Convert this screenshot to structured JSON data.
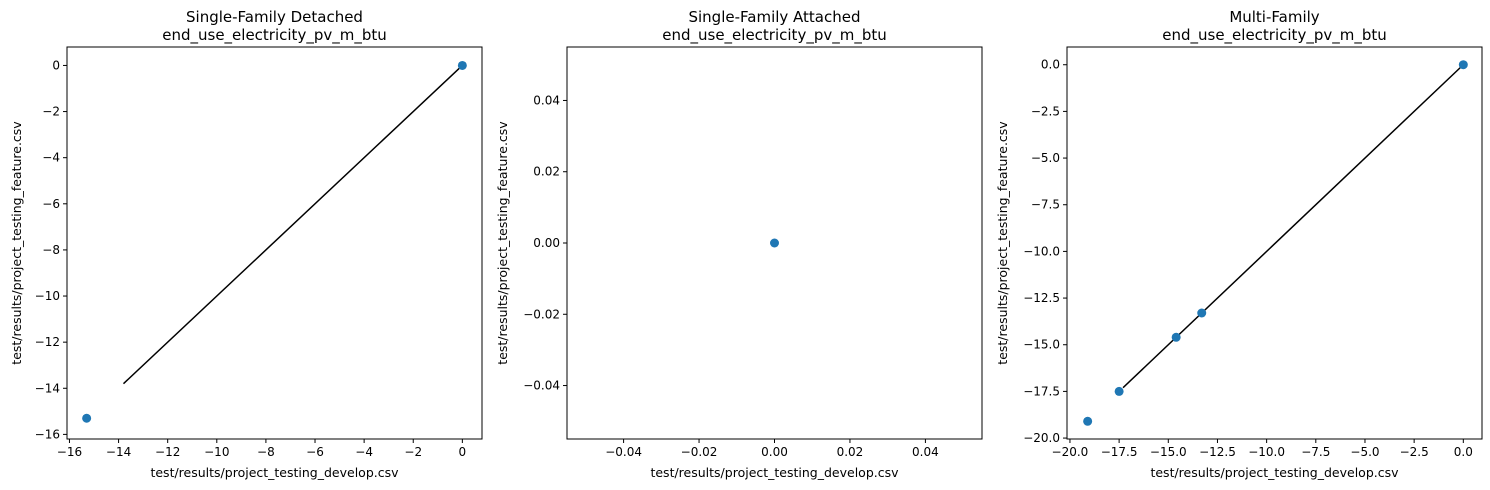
{
  "chart_data": [
    {
      "type": "scatter",
      "title": "Single-Family Detached",
      "subtitle": "end_use_electricity_pv_m_btu",
      "xlabel": "test/results/project_testing_develop.csv",
      "ylabel": "test/results/project_testing_feature.csv",
      "xlim": [
        -16.1,
        0.8
      ],
      "ylim": [
        -16.2,
        0.8
      ],
      "xticks": [
        -16,
        -14,
        -12,
        -10,
        -8,
        -6,
        -4,
        -2,
        0
      ],
      "xtick_labels": [
        "−16",
        "−14",
        "−12",
        "−10",
        "−8",
        "−6",
        "−4",
        "−2",
        "0"
      ],
      "yticks": [
        0,
        -2,
        -4,
        -6,
        -8,
        -10,
        -12,
        -14,
        -16
      ],
      "ytick_labels": [
        "0",
        "−2",
        "−4",
        "−6",
        "−8",
        "−10",
        "−12",
        "−14",
        "−16"
      ],
      "points": [
        {
          "x": 0,
          "y": 0
        },
        {
          "x": -15.3,
          "y": -15.3
        }
      ],
      "line": [
        {
          "x": -13.8,
          "y": -13.8
        },
        {
          "x": 0,
          "y": 0
        }
      ],
      "point_color": "#1f77b4",
      "line_color": "#000000"
    },
    {
      "type": "scatter",
      "title": "Single-Family Attached",
      "subtitle": "end_use_electricity_pv_m_btu",
      "xlabel": "test/results/project_testing_develop.csv",
      "ylabel": "test/results/project_testing_feature.csv",
      "xlim": [
        -0.055,
        0.055
      ],
      "ylim": [
        -0.055,
        0.055
      ],
      "xticks": [
        -0.04,
        -0.02,
        0,
        0.02,
        0.04
      ],
      "xtick_labels": [
        "−0.04",
        "−0.02",
        "0.00",
        "0.02",
        "0.04"
      ],
      "yticks": [
        0.04,
        0.02,
        0,
        -0.02,
        -0.04
      ],
      "ytick_labels": [
        "0.04",
        "0.02",
        "0.00",
        "−0.02",
        "−0.04"
      ],
      "points": [
        {
          "x": 0,
          "y": 0
        }
      ],
      "line": [],
      "point_color": "#1f77b4",
      "line_color": "#000000"
    },
    {
      "type": "scatter",
      "title": "Multi-Family",
      "subtitle": "end_use_electricity_pv_m_btu",
      "xlabel": "test/results/project_testing_develop.csv",
      "ylabel": "test/results/project_testing_feature.csv",
      "xlim": [
        -20.15,
        0.95
      ],
      "ylim": [
        -20.05,
        0.95
      ],
      "xticks": [
        -20,
        -17.5,
        -15,
        -12.5,
        -10,
        -7.5,
        -5,
        -2.5,
        0
      ],
      "xtick_labels": [
        "−20.0",
        "−17.5",
        "−15.0",
        "−12.5",
        "−10.0",
        "−7.5",
        "−5.0",
        "−2.5",
        "0.0"
      ],
      "yticks": [
        0,
        -2.5,
        -5,
        -7.5,
        -10,
        -12.5,
        -15,
        -17.5,
        -20
      ],
      "ytick_labels": [
        "0.0",
        "−2.5",
        "−5.0",
        "−7.5",
        "−10.0",
        "−12.5",
        "−15.0",
        "−17.5",
        "−20.0"
      ],
      "points": [
        {
          "x": 0,
          "y": 0
        },
        {
          "x": -13.3,
          "y": -13.3
        },
        {
          "x": -14.6,
          "y": -14.6
        },
        {
          "x": -17.5,
          "y": -17.5
        },
        {
          "x": -19.1,
          "y": -19.1
        }
      ],
      "line": [
        {
          "x": -17.3,
          "y": -17.3
        },
        {
          "x": 0,
          "y": 0
        }
      ],
      "point_color": "#1f77b4",
      "line_color": "#000000"
    }
  ]
}
